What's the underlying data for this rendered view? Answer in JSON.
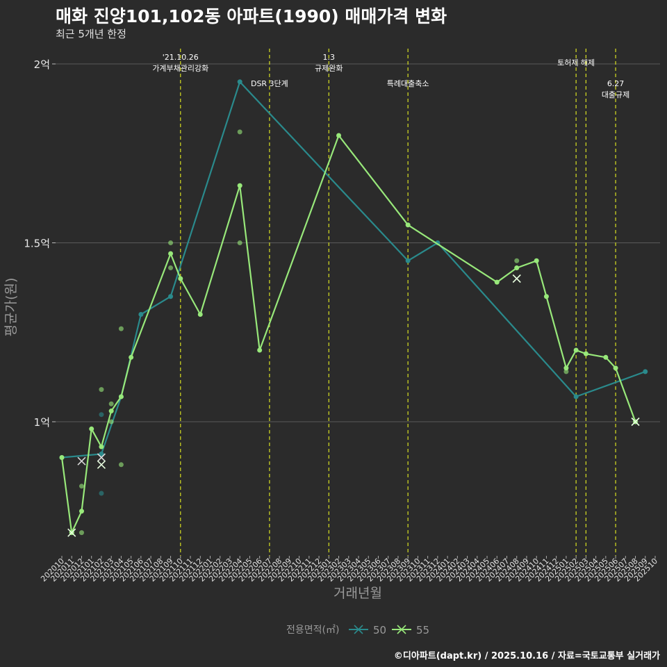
{
  "title": "매화 진양101,102동 아파트(1990) 매매가격 변화",
  "subtitle": "최근 5개년 한정",
  "caption": "©디아파트(dapt.kr) / 2025.10.16 / 자료=국토교통부 실거래가",
  "chart_data": {
    "type": "line",
    "xlabel": "거래년월",
    "ylabel": "평균가(원)",
    "ylim": [
      0.65,
      2.05
    ],
    "yticks": [
      {
        "value": 1.0,
        "label": "1억"
      },
      {
        "value": 1.5,
        "label": "1.5억"
      },
      {
        "value": 2.0,
        "label": "2억"
      }
    ],
    "categories": [
      "202010",
      "202011",
      "202012",
      "202101",
      "202102",
      "202103",
      "202104",
      "202105",
      "202106",
      "202107",
      "202108",
      "202109",
      "202110",
      "202111",
      "202112",
      "202201",
      "202202",
      "202203",
      "202204",
      "202205",
      "202206",
      "202207",
      "202208",
      "202209",
      "202210",
      "202211",
      "202212",
      "202301",
      "202302",
      "202303",
      "202304",
      "202305",
      "202306",
      "202307",
      "202308",
      "202309",
      "202310",
      "202311",
      "202312",
      "202401",
      "202402",
      "202403",
      "202404",
      "202405",
      "202406",
      "202407",
      "202408",
      "202409",
      "202410",
      "202411",
      "202412",
      "202501",
      "202502",
      "202503",
      "202504",
      "202505",
      "202506",
      "202507",
      "202508",
      "202509",
      "202510"
    ],
    "legend_title": "전용면적(㎡)",
    "series": [
      {
        "name": "50",
        "color": "#2a8a8c",
        "line": [
          {
            "x": "202010",
            "y": 0.9
          },
          {
            "x": "202102",
            "y": 0.91
          },
          {
            "x": "202104",
            "y": 1.07
          },
          {
            "x": "202106",
            "y": 1.3
          },
          {
            "x": "202109",
            "y": 1.35
          },
          {
            "x": "202204",
            "y": 1.95
          },
          {
            "x": "202309",
            "y": 1.45
          },
          {
            "x": "202312",
            "y": 1.5
          },
          {
            "x": "202502",
            "y": 1.07
          },
          {
            "x": "202509",
            "y": 1.14
          }
        ],
        "points": [
          {
            "x": "202102",
            "y": 1.02
          },
          {
            "x": "202102",
            "y": 0.8
          }
        ],
        "cancelled": [
          {
            "x": "202012",
            "y": 0.89
          },
          {
            "x": "202102",
            "y": 0.9
          }
        ]
      },
      {
        "name": "55",
        "color": "#98e87a",
        "line": [
          {
            "x": "202010",
            "y": 0.9
          },
          {
            "x": "202011",
            "y": 0.69
          },
          {
            "x": "202012",
            "y": 0.75
          },
          {
            "x": "202101",
            "y": 0.98
          },
          {
            "x": "202102",
            "y": 0.93
          },
          {
            "x": "202103",
            "y": 1.03
          },
          {
            "x": "202104",
            "y": 1.07
          },
          {
            "x": "202105",
            "y": 1.18
          },
          {
            "x": "202109",
            "y": 1.47
          },
          {
            "x": "202110",
            "y": 1.4
          },
          {
            "x": "202112",
            "y": 1.3
          },
          {
            "x": "202204",
            "y": 1.66
          },
          {
            "x": "202206",
            "y": 1.2
          },
          {
            "x": "202302",
            "y": 1.8
          },
          {
            "x": "202309",
            "y": 1.55
          },
          {
            "x": "202406",
            "y": 1.39
          },
          {
            "x": "202408",
            "y": 1.43
          },
          {
            "x": "202410",
            "y": 1.45
          },
          {
            "x": "202411",
            "y": 1.35
          },
          {
            "x": "202501",
            "y": 1.15
          },
          {
            "x": "202502",
            "y": 1.2
          },
          {
            "x": "202503",
            "y": 1.19
          },
          {
            "x": "202505",
            "y": 1.18
          },
          {
            "x": "202506",
            "y": 1.15
          },
          {
            "x": "202508",
            "y": 1.0
          }
        ],
        "points": [
          {
            "x": "202011",
            "y": 0.69
          },
          {
            "x": "202012",
            "y": 0.69
          },
          {
            "x": "202012",
            "y": 0.82
          },
          {
            "x": "202102",
            "y": 1.09
          },
          {
            "x": "202103",
            "y": 1.05
          },
          {
            "x": "202103",
            "y": 1.0
          },
          {
            "x": "202104",
            "y": 1.26
          },
          {
            "x": "202104",
            "y": 0.88
          },
          {
            "x": "202109",
            "y": 1.5
          },
          {
            "x": "202109",
            "y": 1.43
          },
          {
            "x": "202204",
            "y": 1.81
          },
          {
            "x": "202204",
            "y": 1.5
          },
          {
            "x": "202408",
            "y": 1.45
          },
          {
            "x": "202501",
            "y": 1.14
          }
        ],
        "cancelled": [
          {
            "x": "202011",
            "y": 0.69
          },
          {
            "x": "202102",
            "y": 0.88
          },
          {
            "x": "202408",
            "y": 1.4
          },
          {
            "x": "202508",
            "y": 1.0
          }
        ]
      }
    ],
    "events": [
      {
        "x": "202110",
        "lines": [
          "'21.10.26",
          "가계부채관리강화"
        ],
        "row": 0
      },
      {
        "x": "202207",
        "lines": [
          "DSR 3단계"
        ],
        "row": 1
      },
      {
        "x": "202301",
        "lines": [
          "1.3",
          "규제완화"
        ],
        "row": 0
      },
      {
        "x": "202309",
        "lines": [
          "특례대출축소"
        ],
        "row": 1
      },
      {
        "x": "202502",
        "lines": [
          "토허제 해제"
        ],
        "row": 0
      },
      {
        "x": "202503",
        "lines": [],
        "row": 0
      },
      {
        "x": "202506",
        "lines": [
          "6.27",
          "대출규제"
        ],
        "row": 1
      }
    ]
  }
}
